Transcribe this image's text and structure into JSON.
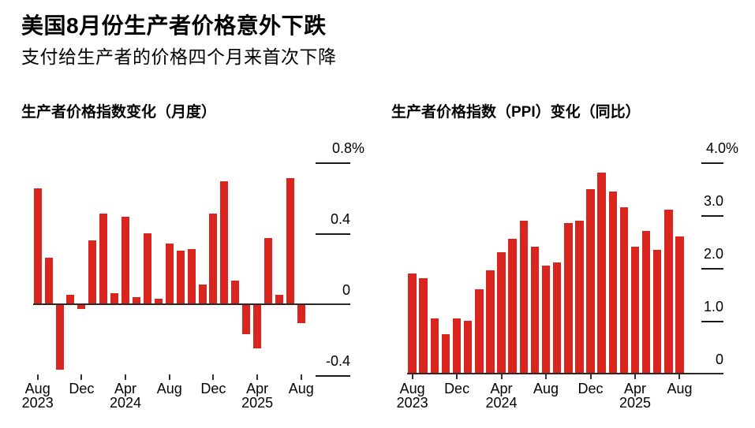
{
  "header": {
    "title": "美国8月份生产者价格意外下跌",
    "subtitle": "支付给生产者的价格四个月来首次下降"
  },
  "colors": {
    "bar": "#d9251e",
    "axis": "#2a2a2a",
    "tick": "#1a1a1a",
    "text": "#000000",
    "background": "#ffffff"
  },
  "chart_data": [
    {
      "type": "bar",
      "title": "生产者价格指数变化（月度）",
      "unit": "percent",
      "x": [
        "Aug 2023",
        "Sep 2023",
        "Oct 2023",
        "Nov 2023",
        "Dec 2023",
        "Jan 2024",
        "Feb 2024",
        "Mar 2024",
        "Apr 2024",
        "May 2024",
        "Jun 2024",
        "Jul 2024",
        "Aug 2024",
        "Sep 2024",
        "Oct 2024",
        "Nov 2024",
        "Dec 2024",
        "Jan 2025",
        "Feb 2025",
        "Mar 2025",
        "Apr 2025",
        "May 2025",
        "Jun 2025",
        "Jul 2025",
        "Aug 2025"
      ],
      "values": [
        0.65,
        0.26,
        -0.37,
        0.05,
        -0.03,
        0.36,
        0.51,
        0.06,
        0.49,
        0.04,
        0.4,
        0.03,
        0.34,
        0.3,
        0.31,
        0.11,
        0.51,
        0.69,
        0.13,
        -0.17,
        -0.25,
        0.37,
        0.05,
        0.71,
        -0.11
      ],
      "ylim": [
        -0.45,
        0.85
      ],
      "grid": false,
      "legend": false,
      "y_ticks": [
        {
          "label": "0.8%",
          "value": 0.8
        },
        {
          "label": "0.4",
          "value": 0.4
        },
        {
          "label": "0",
          "value": 0
        },
        {
          "label": "-0.4",
          "value": -0.4
        }
      ],
      "x_ticks": [
        {
          "label": "Aug",
          "year": "2023"
        },
        {
          "label": "Dec",
          "year": ""
        },
        {
          "label": "Apr",
          "year": "2024"
        },
        {
          "label": "Aug",
          "year": ""
        },
        {
          "label": "Dec",
          "year": ""
        },
        {
          "label": "Apr",
          "year": "2025"
        },
        {
          "label": "Aug",
          "year": ""
        }
      ]
    },
    {
      "type": "bar",
      "title": "生产者价格指数（PPI）变化（同比）",
      "unit": "percent",
      "x": [
        "Aug 2023",
        "Sep 2023",
        "Oct 2023",
        "Nov 2023",
        "Dec 2023",
        "Jan 2024",
        "Feb 2024",
        "Mar 2024",
        "Apr 2024",
        "May 2024",
        "Jun 2024",
        "Jul 2024",
        "Aug 2024",
        "Sep 2024",
        "Oct 2024",
        "Nov 2024",
        "Dec 2024",
        "Jan 2025",
        "Feb 2025",
        "Mar 2025",
        "Apr 2025",
        "May 2025",
        "Jun 2025",
        "Jul 2025",
        "Aug 2025"
      ],
      "values": [
        1.9,
        1.8,
        1.05,
        0.75,
        1.05,
        1.0,
        1.6,
        1.95,
        2.3,
        2.55,
        2.9,
        2.4,
        2.05,
        2.1,
        2.85,
        2.9,
        3.5,
        3.8,
        3.45,
        3.15,
        2.4,
        2.7,
        2.35,
        3.1,
        2.6
      ],
      "ylim": [
        0,
        4.2
      ],
      "grid": false,
      "legend": false,
      "y_ticks": [
        {
          "label": "4.0%",
          "value": 4.0
        },
        {
          "label": "3.0",
          "value": 3.0
        },
        {
          "label": "2.0",
          "value": 2.0
        },
        {
          "label": "1.0",
          "value": 1.0
        },
        {
          "label": "0",
          "value": 0
        }
      ],
      "x_ticks": [
        {
          "label": "Aug",
          "year": "2023"
        },
        {
          "label": "Dec",
          "year": ""
        },
        {
          "label": "Apr",
          "year": "2024"
        },
        {
          "label": "Aug",
          "year": ""
        },
        {
          "label": "Dec",
          "year": ""
        },
        {
          "label": "Apr",
          "year": "2025"
        },
        {
          "label": "Aug",
          "year": ""
        }
      ]
    }
  ]
}
